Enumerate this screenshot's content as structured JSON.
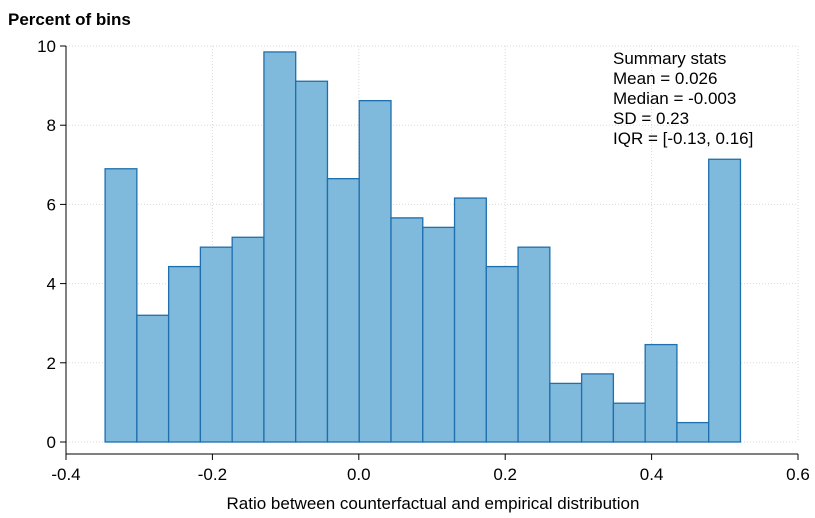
{
  "chart_data": {
    "type": "bar",
    "title": "",
    "ylabel": "Percent of bins",
    "xlabel": "Ratio between counterfactual and empirical distribution",
    "xlim": [
      -0.4,
      0.6
    ],
    "ylim": [
      0,
      10
    ],
    "x_ticks": [
      -0.4,
      -0.2,
      0.0,
      0.2,
      0.4,
      0.6
    ],
    "x_tick_labels": [
      "-0.4",
      "-0.2",
      "0.0",
      "0.2",
      "0.4",
      "0.6"
    ],
    "y_ticks": [
      0,
      2,
      4,
      6,
      8,
      10
    ],
    "y_tick_labels": [
      "0",
      "2",
      "4",
      "6",
      "8",
      "10"
    ],
    "grid": true,
    "bin_width": 0.0434,
    "bin_edges": [
      -0.3466,
      -0.3032,
      -0.2598,
      -0.2164,
      -0.173,
      -0.1296,
      -0.0862,
      -0.0428,
      0.0006,
      0.044,
      0.0874,
      0.1308,
      0.1742,
      0.2176,
      0.261,
      0.3044,
      0.3478,
      0.3912,
      0.4346,
      0.478,
      0.5214
    ],
    "values": [
      6.9,
      3.2,
      4.43,
      4.92,
      5.17,
      9.85,
      9.11,
      6.65,
      8.62,
      5.66,
      5.42,
      6.16,
      4.43,
      4.92,
      1.48,
      1.72,
      0.98,
      2.46,
      0.49,
      7.14
    ],
    "bar_fill": "#7fb9dc",
    "bar_stroke": "#1f6fae",
    "annotation": {
      "lines": [
        "Summary stats",
        "Mean = 0.026",
        "Median = -0.003",
        "SD = 0.23",
        "IQR = [-0.13, 0.16]"
      ]
    }
  }
}
